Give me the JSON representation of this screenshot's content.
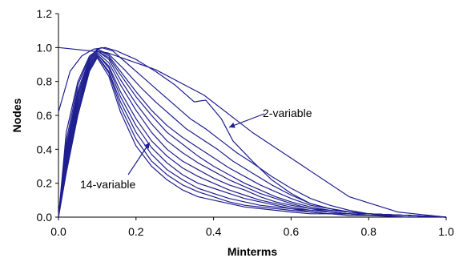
{
  "chart_data": {
    "type": "line",
    "title": "",
    "xlabel": "Minterms",
    "ylabel": "Nodes",
    "xlim": [
      0.0,
      1.0
    ],
    "ylim": [
      0.0,
      1.2
    ],
    "xticks": [
      "0.0",
      "0.2",
      "0.4",
      "0.6",
      "0.8",
      "1.0"
    ],
    "yticks": [
      "0.0",
      "0.2",
      "0.4",
      "0.6",
      "0.8",
      "1.0",
      "1.2"
    ],
    "grid": false,
    "legend": "none",
    "line_color": "#1f1f8f",
    "annotations": [
      {
        "text": "2-variable",
        "arrow_to": [
          0.44,
          0.53
        ]
      },
      {
        "text": "14-variable",
        "arrow_to": [
          0.235,
          0.44
        ]
      }
    ],
    "series": [
      {
        "x": [
          0.0,
          0.125,
          0.25,
          0.375,
          0.5,
          0.625,
          0.75,
          0.875,
          1.0
        ],
        "y": [
          1.0,
          0.97,
          0.87,
          0.72,
          0.5,
          0.31,
          0.12,
          0.03,
          0.0
        ]
      },
      {
        "x": [
          0.0,
          0.03,
          0.06,
          0.09,
          0.12,
          0.15,
          0.2,
          0.25,
          0.3,
          0.35,
          0.38,
          0.42,
          0.45,
          0.5,
          0.55,
          0.6,
          0.65,
          0.7,
          0.75,
          0.8,
          0.9,
          1.0
        ],
        "y": [
          0.62,
          0.86,
          0.95,
          0.99,
          1.0,
          0.98,
          0.93,
          0.86,
          0.78,
          0.68,
          0.69,
          0.58,
          0.45,
          0.33,
          0.22,
          0.14,
          0.08,
          0.05,
          0.03,
          0.02,
          0.01,
          0.0
        ]
      },
      {
        "x": [
          0.0,
          0.02,
          0.05,
          0.08,
          0.11,
          0.14,
          0.18,
          0.22,
          0.26,
          0.3,
          0.34,
          0.38,
          0.42,
          0.46,
          0.5,
          0.55,
          0.6,
          0.65,
          0.7,
          0.75,
          0.8,
          0.9,
          1.0
        ],
        "y": [
          0.0,
          0.5,
          0.8,
          0.95,
          1.0,
          0.98,
          0.9,
          0.82,
          0.74,
          0.66,
          0.58,
          0.52,
          0.45,
          0.38,
          0.32,
          0.24,
          0.17,
          0.11,
          0.07,
          0.04,
          0.02,
          0.01,
          0.0
        ]
      },
      {
        "x": [
          0.0,
          0.02,
          0.05,
          0.08,
          0.1,
          0.13,
          0.17,
          0.21,
          0.25,
          0.29,
          0.33,
          0.37,
          0.41,
          0.45,
          0.5,
          0.55,
          0.6,
          0.65,
          0.7,
          0.75,
          0.8,
          0.9,
          1.0
        ],
        "y": [
          0.0,
          0.45,
          0.78,
          0.94,
          0.99,
          0.96,
          0.87,
          0.77,
          0.68,
          0.6,
          0.52,
          0.46,
          0.4,
          0.33,
          0.26,
          0.19,
          0.13,
          0.08,
          0.05,
          0.03,
          0.02,
          0.01,
          0.0
        ]
      },
      {
        "x": [
          0.0,
          0.02,
          0.05,
          0.08,
          0.1,
          0.13,
          0.16,
          0.2,
          0.24,
          0.28,
          0.32,
          0.36,
          0.4,
          0.44,
          0.48,
          0.52,
          0.56,
          0.6,
          0.65,
          0.7,
          0.75,
          0.8,
          0.9,
          1.0
        ],
        "y": [
          0.0,
          0.42,
          0.75,
          0.93,
          0.99,
          0.95,
          0.86,
          0.74,
          0.63,
          0.54,
          0.47,
          0.41,
          0.35,
          0.29,
          0.24,
          0.19,
          0.15,
          0.11,
          0.07,
          0.05,
          0.03,
          0.02,
          0.01,
          0.0
        ]
      },
      {
        "x": [
          0.0,
          0.02,
          0.05,
          0.08,
          0.1,
          0.13,
          0.16,
          0.2,
          0.24,
          0.28,
          0.32,
          0.36,
          0.4,
          0.44,
          0.48,
          0.52,
          0.56,
          0.6,
          0.65,
          0.7,
          0.75,
          0.8,
          0.9,
          1.0
        ],
        "y": [
          0.0,
          0.4,
          0.73,
          0.92,
          0.98,
          0.94,
          0.84,
          0.71,
          0.6,
          0.5,
          0.43,
          0.36,
          0.3,
          0.25,
          0.2,
          0.16,
          0.12,
          0.09,
          0.06,
          0.04,
          0.03,
          0.02,
          0.01,
          0.0
        ]
      },
      {
        "x": [
          0.0,
          0.02,
          0.05,
          0.08,
          0.1,
          0.13,
          0.16,
          0.2,
          0.24,
          0.28,
          0.32,
          0.36,
          0.4,
          0.44,
          0.48,
          0.52,
          0.56,
          0.6,
          0.65,
          0.7,
          0.75,
          0.8,
          0.9,
          1.0
        ],
        "y": [
          0.0,
          0.38,
          0.72,
          0.92,
          0.98,
          0.93,
          0.81,
          0.67,
          0.55,
          0.45,
          0.38,
          0.32,
          0.27,
          0.22,
          0.18,
          0.14,
          0.11,
          0.08,
          0.05,
          0.04,
          0.03,
          0.02,
          0.01,
          0.0
        ]
      },
      {
        "x": [
          0.0,
          0.02,
          0.05,
          0.08,
          0.1,
          0.13,
          0.16,
          0.2,
          0.24,
          0.28,
          0.32,
          0.36,
          0.4,
          0.44,
          0.48,
          0.52,
          0.56,
          0.6,
          0.65,
          0.7,
          0.75,
          0.8,
          0.9,
          1.0
        ],
        "y": [
          0.0,
          0.36,
          0.7,
          0.91,
          0.97,
          0.91,
          0.78,
          0.63,
          0.5,
          0.4,
          0.33,
          0.28,
          0.23,
          0.19,
          0.16,
          0.12,
          0.09,
          0.07,
          0.05,
          0.03,
          0.02,
          0.02,
          0.01,
          0.0
        ]
      },
      {
        "x": [
          0.0,
          0.02,
          0.05,
          0.08,
          0.1,
          0.13,
          0.16,
          0.2,
          0.24,
          0.28,
          0.32,
          0.36,
          0.4,
          0.44,
          0.48,
          0.52,
          0.56,
          0.6,
          0.65,
          0.7,
          0.75,
          0.8,
          0.9,
          1.0
        ],
        "y": [
          0.0,
          0.34,
          0.68,
          0.9,
          0.96,
          0.89,
          0.74,
          0.58,
          0.45,
          0.36,
          0.29,
          0.24,
          0.2,
          0.16,
          0.13,
          0.1,
          0.08,
          0.06,
          0.04,
          0.03,
          0.02,
          0.01,
          0.01,
          0.0
        ]
      },
      {
        "x": [
          0.0,
          0.02,
          0.05,
          0.08,
          0.1,
          0.13,
          0.16,
          0.2,
          0.24,
          0.28,
          0.32,
          0.36,
          0.4,
          0.44,
          0.48,
          0.52,
          0.56,
          0.6,
          0.65,
          0.7,
          0.75,
          0.8,
          0.9,
          1.0
        ],
        "y": [
          0.0,
          0.32,
          0.66,
          0.89,
          0.96,
          0.88,
          0.71,
          0.54,
          0.41,
          0.32,
          0.25,
          0.2,
          0.17,
          0.14,
          0.11,
          0.09,
          0.07,
          0.05,
          0.04,
          0.03,
          0.02,
          0.01,
          0.01,
          0.0
        ]
      },
      {
        "x": [
          0.0,
          0.02,
          0.05,
          0.08,
          0.1,
          0.13,
          0.16,
          0.2,
          0.24,
          0.28,
          0.32,
          0.36,
          0.4,
          0.44,
          0.48,
          0.52,
          0.56,
          0.6,
          0.65,
          0.7,
          0.75,
          0.8,
          0.9,
          1.0
        ],
        "y": [
          0.0,
          0.3,
          0.64,
          0.88,
          0.95,
          0.86,
          0.68,
          0.5,
          0.37,
          0.28,
          0.22,
          0.17,
          0.14,
          0.11,
          0.09,
          0.07,
          0.06,
          0.05,
          0.03,
          0.02,
          0.02,
          0.01,
          0.01,
          0.0
        ]
      },
      {
        "x": [
          0.0,
          0.02,
          0.05,
          0.08,
          0.1,
          0.13,
          0.16,
          0.2,
          0.24,
          0.28,
          0.32,
          0.36,
          0.4,
          0.44,
          0.48,
          0.52,
          0.56,
          0.6,
          0.65,
          0.7,
          0.75,
          0.8,
          0.9,
          1.0
        ],
        "y": [
          0.0,
          0.28,
          0.62,
          0.87,
          0.95,
          0.85,
          0.65,
          0.46,
          0.33,
          0.25,
          0.19,
          0.15,
          0.12,
          0.09,
          0.07,
          0.06,
          0.05,
          0.04,
          0.03,
          0.02,
          0.02,
          0.01,
          0.01,
          0.0
        ]
      },
      {
        "x": [
          0.0,
          0.02,
          0.05,
          0.08,
          0.1,
          0.13,
          0.16,
          0.2,
          0.24,
          0.28,
          0.32,
          0.36,
          0.4,
          0.44,
          0.48,
          0.52,
          0.56,
          0.6,
          0.65,
          0.7,
          0.75,
          0.8,
          0.9,
          1.0
        ],
        "y": [
          0.0,
          0.26,
          0.6,
          0.86,
          0.94,
          0.83,
          0.62,
          0.42,
          0.3,
          0.22,
          0.16,
          0.12,
          0.1,
          0.08,
          0.06,
          0.05,
          0.04,
          0.03,
          0.02,
          0.02,
          0.01,
          0.01,
          0.0,
          0.0
        ]
      }
    ]
  }
}
